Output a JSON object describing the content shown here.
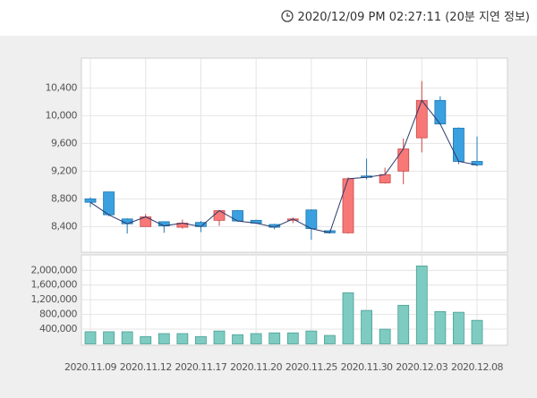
{
  "header": {
    "timestamp": "2020/12/09 PM 02:27:11 (20분 지연 정보)"
  },
  "chart_data": {
    "type": "candlestick",
    "categories": [
      "2020.11.09",
      null,
      null,
      "2020.11.12",
      null,
      null,
      "2020.11.17",
      null,
      null,
      "2020.11.20",
      null,
      null,
      "2020.11.25",
      null,
      null,
      "2020.11.30",
      null,
      null,
      "2020.12.03",
      null,
      null,
      "2020.12.08"
    ],
    "open": [
      8800,
      8900,
      8510,
      8400,
      8470,
      8390,
      8460,
      8490,
      8630,
      8490,
      8430,
      8500,
      8640,
      8340,
      8310,
      9130,
      9030,
      9200,
      9680,
      10220,
      9820,
      9340
    ],
    "high": [
      8820,
      8900,
      8520,
      8580,
      8470,
      8500,
      8480,
      8640,
      8640,
      8500,
      8440,
      8530,
      8650,
      8350,
      9110,
      9380,
      9250,
      9670,
      10500,
      10280,
      9830,
      9700
    ],
    "low": [
      8680,
      8550,
      8300,
      8400,
      8310,
      8370,
      8320,
      8410,
      8470,
      8440,
      8360,
      8450,
      8210,
      8300,
      8300,
      9080,
      9020,
      9010,
      9470,
      9870,
      9300,
      9270
    ],
    "close": [
      8750,
      8570,
      8440,
      8540,
      8410,
      8450,
      8400,
      8630,
      8480,
      8450,
      8390,
      8510,
      8370,
      8310,
      9090,
      9110,
      9150,
      9520,
      10220,
      9880,
      9340,
      9290
    ],
    "up_color": "#f87878",
    "down_color": "#3aa0e0",
    "line_color": "#2c3a6a",
    "ylim": [
      8030,
      10830
    ],
    "yticks": [
      {
        "value": 8400,
        "label": "8,400"
      },
      {
        "value": 8800,
        "label": "8,800"
      },
      {
        "value": 9200,
        "label": "9,200"
      },
      {
        "value": 9600,
        "label": "9,600"
      },
      {
        "value": 10000,
        "label": "10,000"
      },
      {
        "value": 10400,
        "label": "10,400"
      }
    ],
    "grid": true,
    "volume": {
      "values": [
        330000,
        330000,
        330000,
        200000,
        280000,
        280000,
        200000,
        350000,
        250000,
        280000,
        300000,
        300000,
        350000,
        230000,
        1390000,
        910000,
        400000,
        1050000,
        2120000,
        880000,
        860000,
        640000
      ],
      "color": "#7ecbc1",
      "ylim": [
        0,
        2420000
      ],
      "yticks": [
        {
          "value": 400000,
          "label": "400,000"
        },
        {
          "value": 800000,
          "label": "800,000"
        },
        {
          "value": 1200000,
          "label": "1,200,000"
        },
        {
          "value": 1600000,
          "label": "1,600,000"
        },
        {
          "value": 2000000,
          "label": "2,000,000"
        }
      ]
    }
  }
}
